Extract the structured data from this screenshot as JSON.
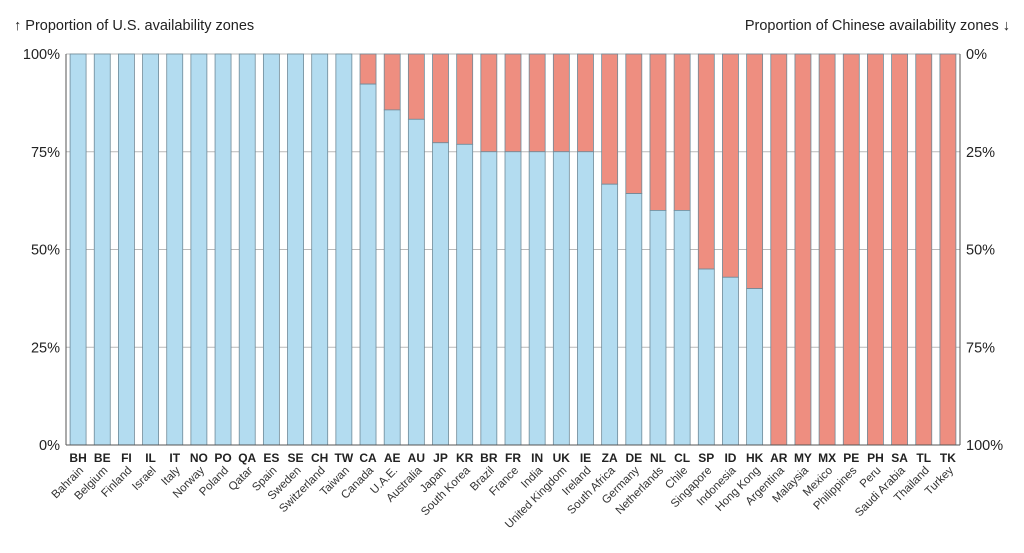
{
  "chart_data": {
    "type": "bar",
    "stacked": true,
    "left_axis_title": "↑ Proportion of U.S. availability zones",
    "right_axis_title": "Proportion of Chinese availability zones ↓",
    "left_ticks": [
      "0%",
      "25%",
      "50%",
      "75%",
      "100%"
    ],
    "right_ticks": [
      "100%",
      "75%",
      "50%",
      "25%",
      "0%"
    ],
    "ylim": [
      0,
      100
    ],
    "grid": true,
    "colors": {
      "us": "#b3dcf0",
      "china": "#ee8e80",
      "bar_stroke": "#6f8a98",
      "grid": "#b9b9b9"
    },
    "categories": [
      {
        "code": "BH",
        "name": "Bahrain"
      },
      {
        "code": "BE",
        "name": "Belgium"
      },
      {
        "code": "FI",
        "name": "Finland"
      },
      {
        "code": "IL",
        "name": "Israel"
      },
      {
        "code": "IT",
        "name": "Italy"
      },
      {
        "code": "NO",
        "name": "Norway"
      },
      {
        "code": "PO",
        "name": "Poland"
      },
      {
        "code": "QA",
        "name": "Qatar"
      },
      {
        "code": "ES",
        "name": "Spain"
      },
      {
        "code": "SE",
        "name": "Sweden"
      },
      {
        "code": "CH",
        "name": "Switzerland"
      },
      {
        "code": "TW",
        "name": "Taiwan"
      },
      {
        "code": "CA",
        "name": "Canada"
      },
      {
        "code": "AE",
        "name": "U.A.E."
      },
      {
        "code": "AU",
        "name": "Australia"
      },
      {
        "code": "JP",
        "name": "Japan"
      },
      {
        "code": "KR",
        "name": "South Korea"
      },
      {
        "code": "BR",
        "name": "Brazil"
      },
      {
        "code": "FR",
        "name": "France"
      },
      {
        "code": "IN",
        "name": "India"
      },
      {
        "code": "UK",
        "name": "United Kingdom"
      },
      {
        "code": "IE",
        "name": "Ireland"
      },
      {
        "code": "ZA",
        "name": "South Africa"
      },
      {
        "code": "DE",
        "name": "Germany"
      },
      {
        "code": "NL",
        "name": "Netherlands"
      },
      {
        "code": "CL",
        "name": "Chile"
      },
      {
        "code": "SP",
        "name": "Singapore"
      },
      {
        "code": "ID",
        "name": "Indonesia"
      },
      {
        "code": "HK",
        "name": "Hong Kong"
      },
      {
        "code": "AR",
        "name": "Argentina"
      },
      {
        "code": "MY",
        "name": "Malaysia"
      },
      {
        "code": "MX",
        "name": "Mexico"
      },
      {
        "code": "PE",
        "name": "Philippines"
      },
      {
        "code": "PH",
        "name": "Peru"
      },
      {
        "code": "SA",
        "name": "Saudi Arabia"
      },
      {
        "code": "TL",
        "name": "Thailand"
      },
      {
        "code": "TK",
        "name": "Turkey"
      }
    ],
    "us_share_percent": [
      100,
      100,
      100,
      100,
      100,
      100,
      100,
      100,
      100,
      100,
      100,
      100,
      92.3,
      85.7,
      83.3,
      77.3,
      76.9,
      75,
      75,
      75,
      75,
      75,
      66.7,
      64.3,
      60,
      60,
      45,
      42.9,
      40,
      0,
      0,
      0,
      0,
      0,
      0,
      0,
      0
    ]
  }
}
